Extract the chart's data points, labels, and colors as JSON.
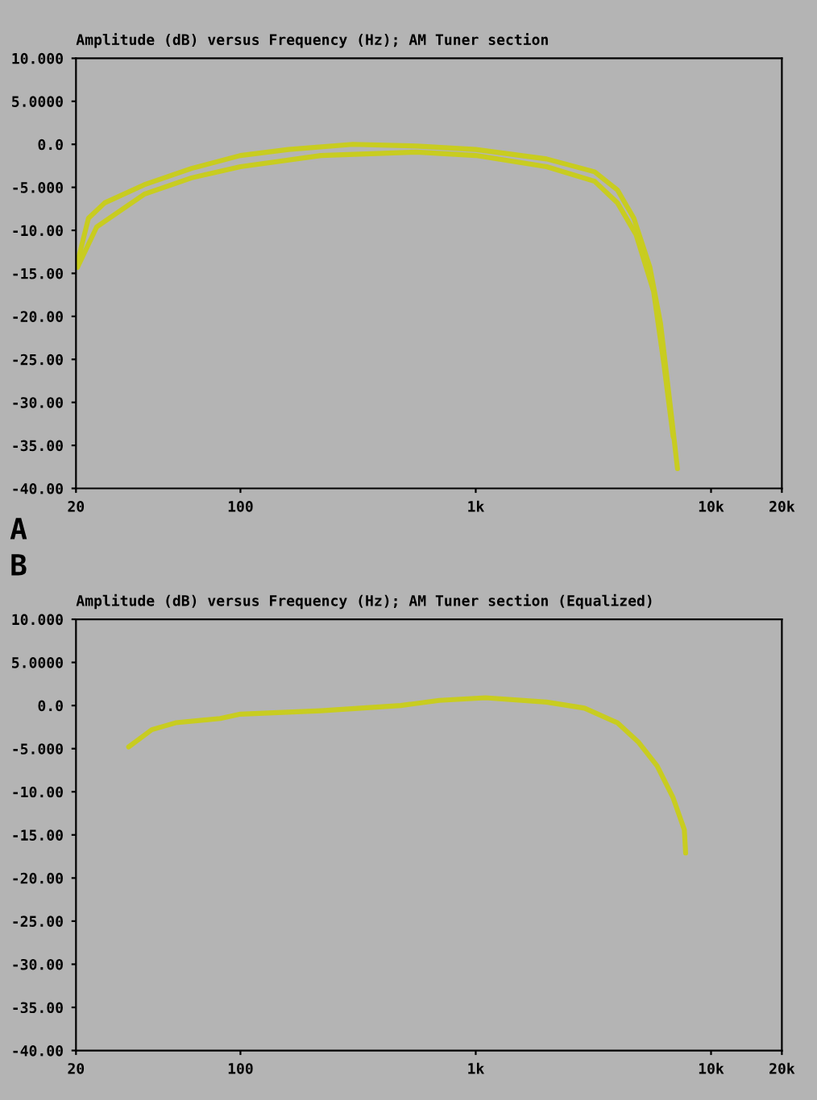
{
  "chart_data": [
    {
      "type": "line",
      "title": "Amplitude (dB) versus Frequency (Hz); AM Tuner section",
      "xlim": [
        20,
        20000
      ],
      "ylim": [
        -40,
        10
      ],
      "log": "x",
      "xticks": [
        20,
        100,
        {
          "value": 1000,
          "label": "1k"
        },
        {
          "value": 10000,
          "label": "10k"
        },
        {
          "value": 20000,
          "label": "20k"
        }
      ],
      "yticks": [
        {
          "value": 10,
          "label": "10.000"
        },
        {
          "value": 5,
          "label": "5.0000"
        },
        {
          "value": 0,
          "label": "0.0"
        },
        {
          "value": -5,
          "label": "-5.000"
        },
        {
          "value": -10,
          "label": "-10.00"
        },
        {
          "value": -15,
          "label": "-15.00"
        },
        {
          "value": -20,
          "label": "-20.00"
        },
        {
          "value": -25,
          "label": "-25.00"
        },
        {
          "value": -30,
          "label": "-30.00"
        },
        {
          "value": -35,
          "label": "-35.00"
        },
        {
          "value": -40,
          "label": "-40.00"
        }
      ],
      "annotations": [
        "A"
      ],
      "series": [
        {
          "color": "#c8cc20",
          "x": [
            20.3,
            22.6,
            26.5,
            39,
            62,
            100,
            160,
            300,
            560,
            1000,
            2000,
            3200,
            4000,
            4700,
            5500,
            6100,
            6700,
            7200
          ],
          "values": [
            -13.7,
            -8.6,
            -6.8,
            -4.7,
            -2.8,
            -1.3,
            -0.6,
            0,
            -0.2,
            -0.6,
            -1.7,
            -3.2,
            -5.3,
            -8.6,
            -14.3,
            -20.8,
            -30.2,
            -37.7
          ]
        },
        {
          "color": "#c8cc20",
          "x": [
            20.3,
            24.5,
            39,
            62,
            100,
            220,
            560,
            1000,
            2000,
            3200,
            4000,
            4800,
            5700,
            6300,
            6900
          ],
          "values": [
            -14.3,
            -9.6,
            -5.8,
            -3.9,
            -2.6,
            -1.3,
            -0.9,
            -1.3,
            -2.6,
            -4.3,
            -6.8,
            -10.5,
            -17.1,
            -25.5,
            -34
          ]
        }
      ]
    },
    {
      "type": "line",
      "title": "Amplitude (dB) versus Frequency (Hz); AM Tuner section (Equalized)",
      "xlim": [
        20,
        20000
      ],
      "ylim": [
        -40,
        10
      ],
      "log": "x",
      "xticks": [
        20,
        100,
        {
          "value": 1000,
          "label": "1k"
        },
        {
          "value": 10000,
          "label": "10k"
        },
        {
          "value": 20000,
          "label": "20k"
        }
      ],
      "yticks": [
        {
          "value": 10,
          "label": "10.000"
        },
        {
          "value": 5,
          "label": "5.0000"
        },
        {
          "value": 0,
          "label": "0.0"
        },
        {
          "value": -5,
          "label": "-5.000"
        },
        {
          "value": -10,
          "label": "-10.00"
        },
        {
          "value": -15,
          "label": "-15.00"
        },
        {
          "value": -20,
          "label": "-20.00"
        },
        {
          "value": -25,
          "label": "-25.00"
        },
        {
          "value": -30,
          "label": "-30.00"
        },
        {
          "value": -35,
          "label": "-35.00"
        },
        {
          "value": -40,
          "label": "-40.00"
        }
      ],
      "annotations": [
        "B"
      ],
      "series": [
        {
          "color": "#c8cc20",
          "x": [
            33.5,
            42,
            53,
            82,
            100,
            220,
            480,
            700,
            1100,
            2000,
            2900,
            4000,
            4900,
            5900,
            6900,
            7700,
            7800
          ],
          "values": [
            -4.8,
            -2.8,
            -2.0,
            -1.5,
            -1.0,
            -0.6,
            0,
            0.6,
            0.9,
            0.4,
            -0.3,
            -2.0,
            -4.2,
            -7.0,
            -10.7,
            -14.4,
            -17.1
          ]
        }
      ]
    }
  ]
}
